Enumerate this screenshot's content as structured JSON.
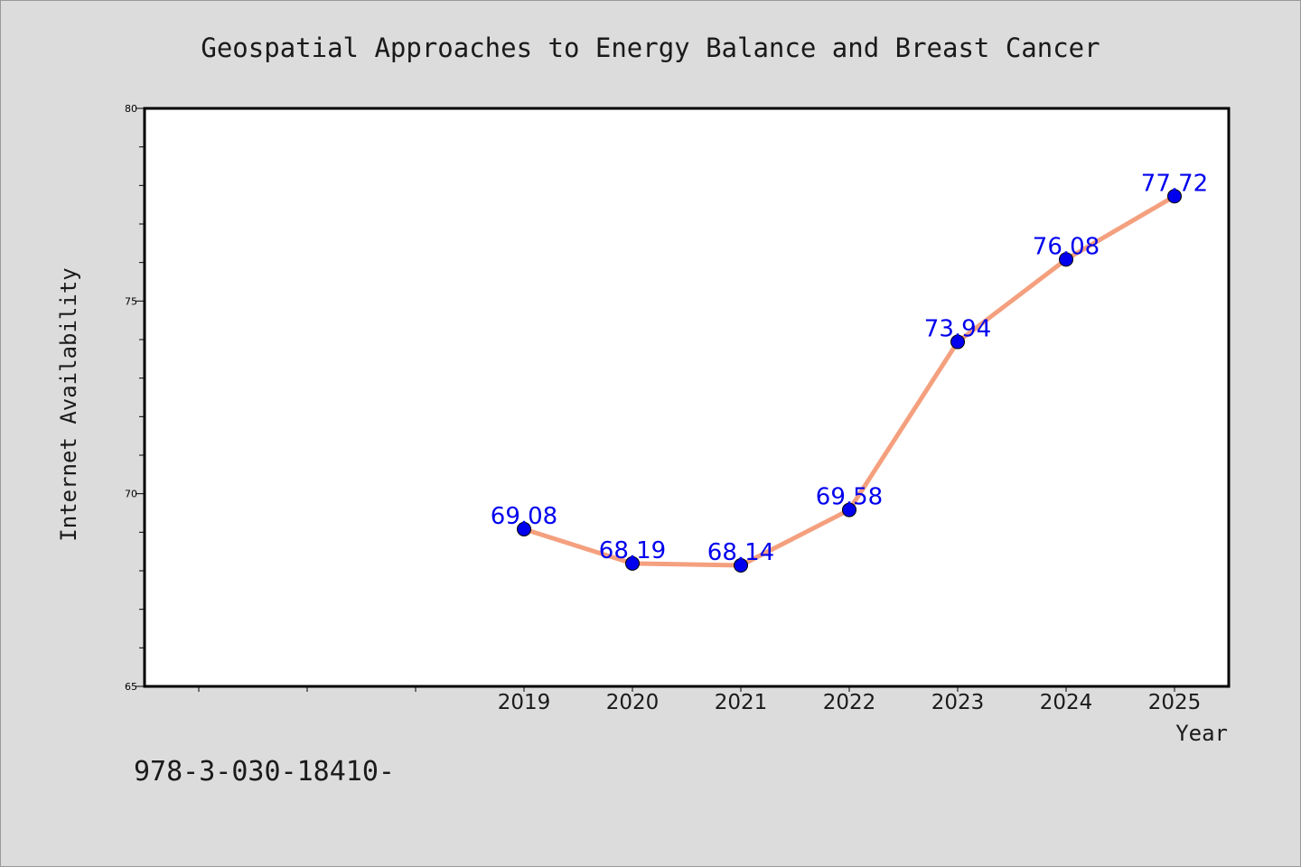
{
  "chart_data": {
    "type": "line",
    "title": "Geospatial Approaches to Energy Balance and Breast Cancer",
    "xlabel": "Year",
    "ylabel": "Internet Availability",
    "x": [
      "2019",
      "2020",
      "2021",
      "2022",
      "2023",
      "2024",
      "2025"
    ],
    "series": [
      {
        "values": [
          69.08,
          68.19,
          68.14,
          69.58,
          73.94,
          76.08,
          77.72
        ]
      }
    ],
    "data_labels": [
      "69.08",
      "68.19",
      "68.14",
      "69.58",
      "73.94",
      "76.08",
      "77.72"
    ],
    "ylim": [
      65,
      80
    ],
    "yticks": [
      65,
      70,
      75,
      80
    ],
    "ytick_labels": [
      "65",
      "70",
      "75",
      "80"
    ],
    "x_slot_count": 10,
    "grid": false,
    "line_color": "#f4a07e",
    "marker_color": "#0000ee",
    "label_color": "#0000ee"
  },
  "footnote": "978-3-030-18410-"
}
